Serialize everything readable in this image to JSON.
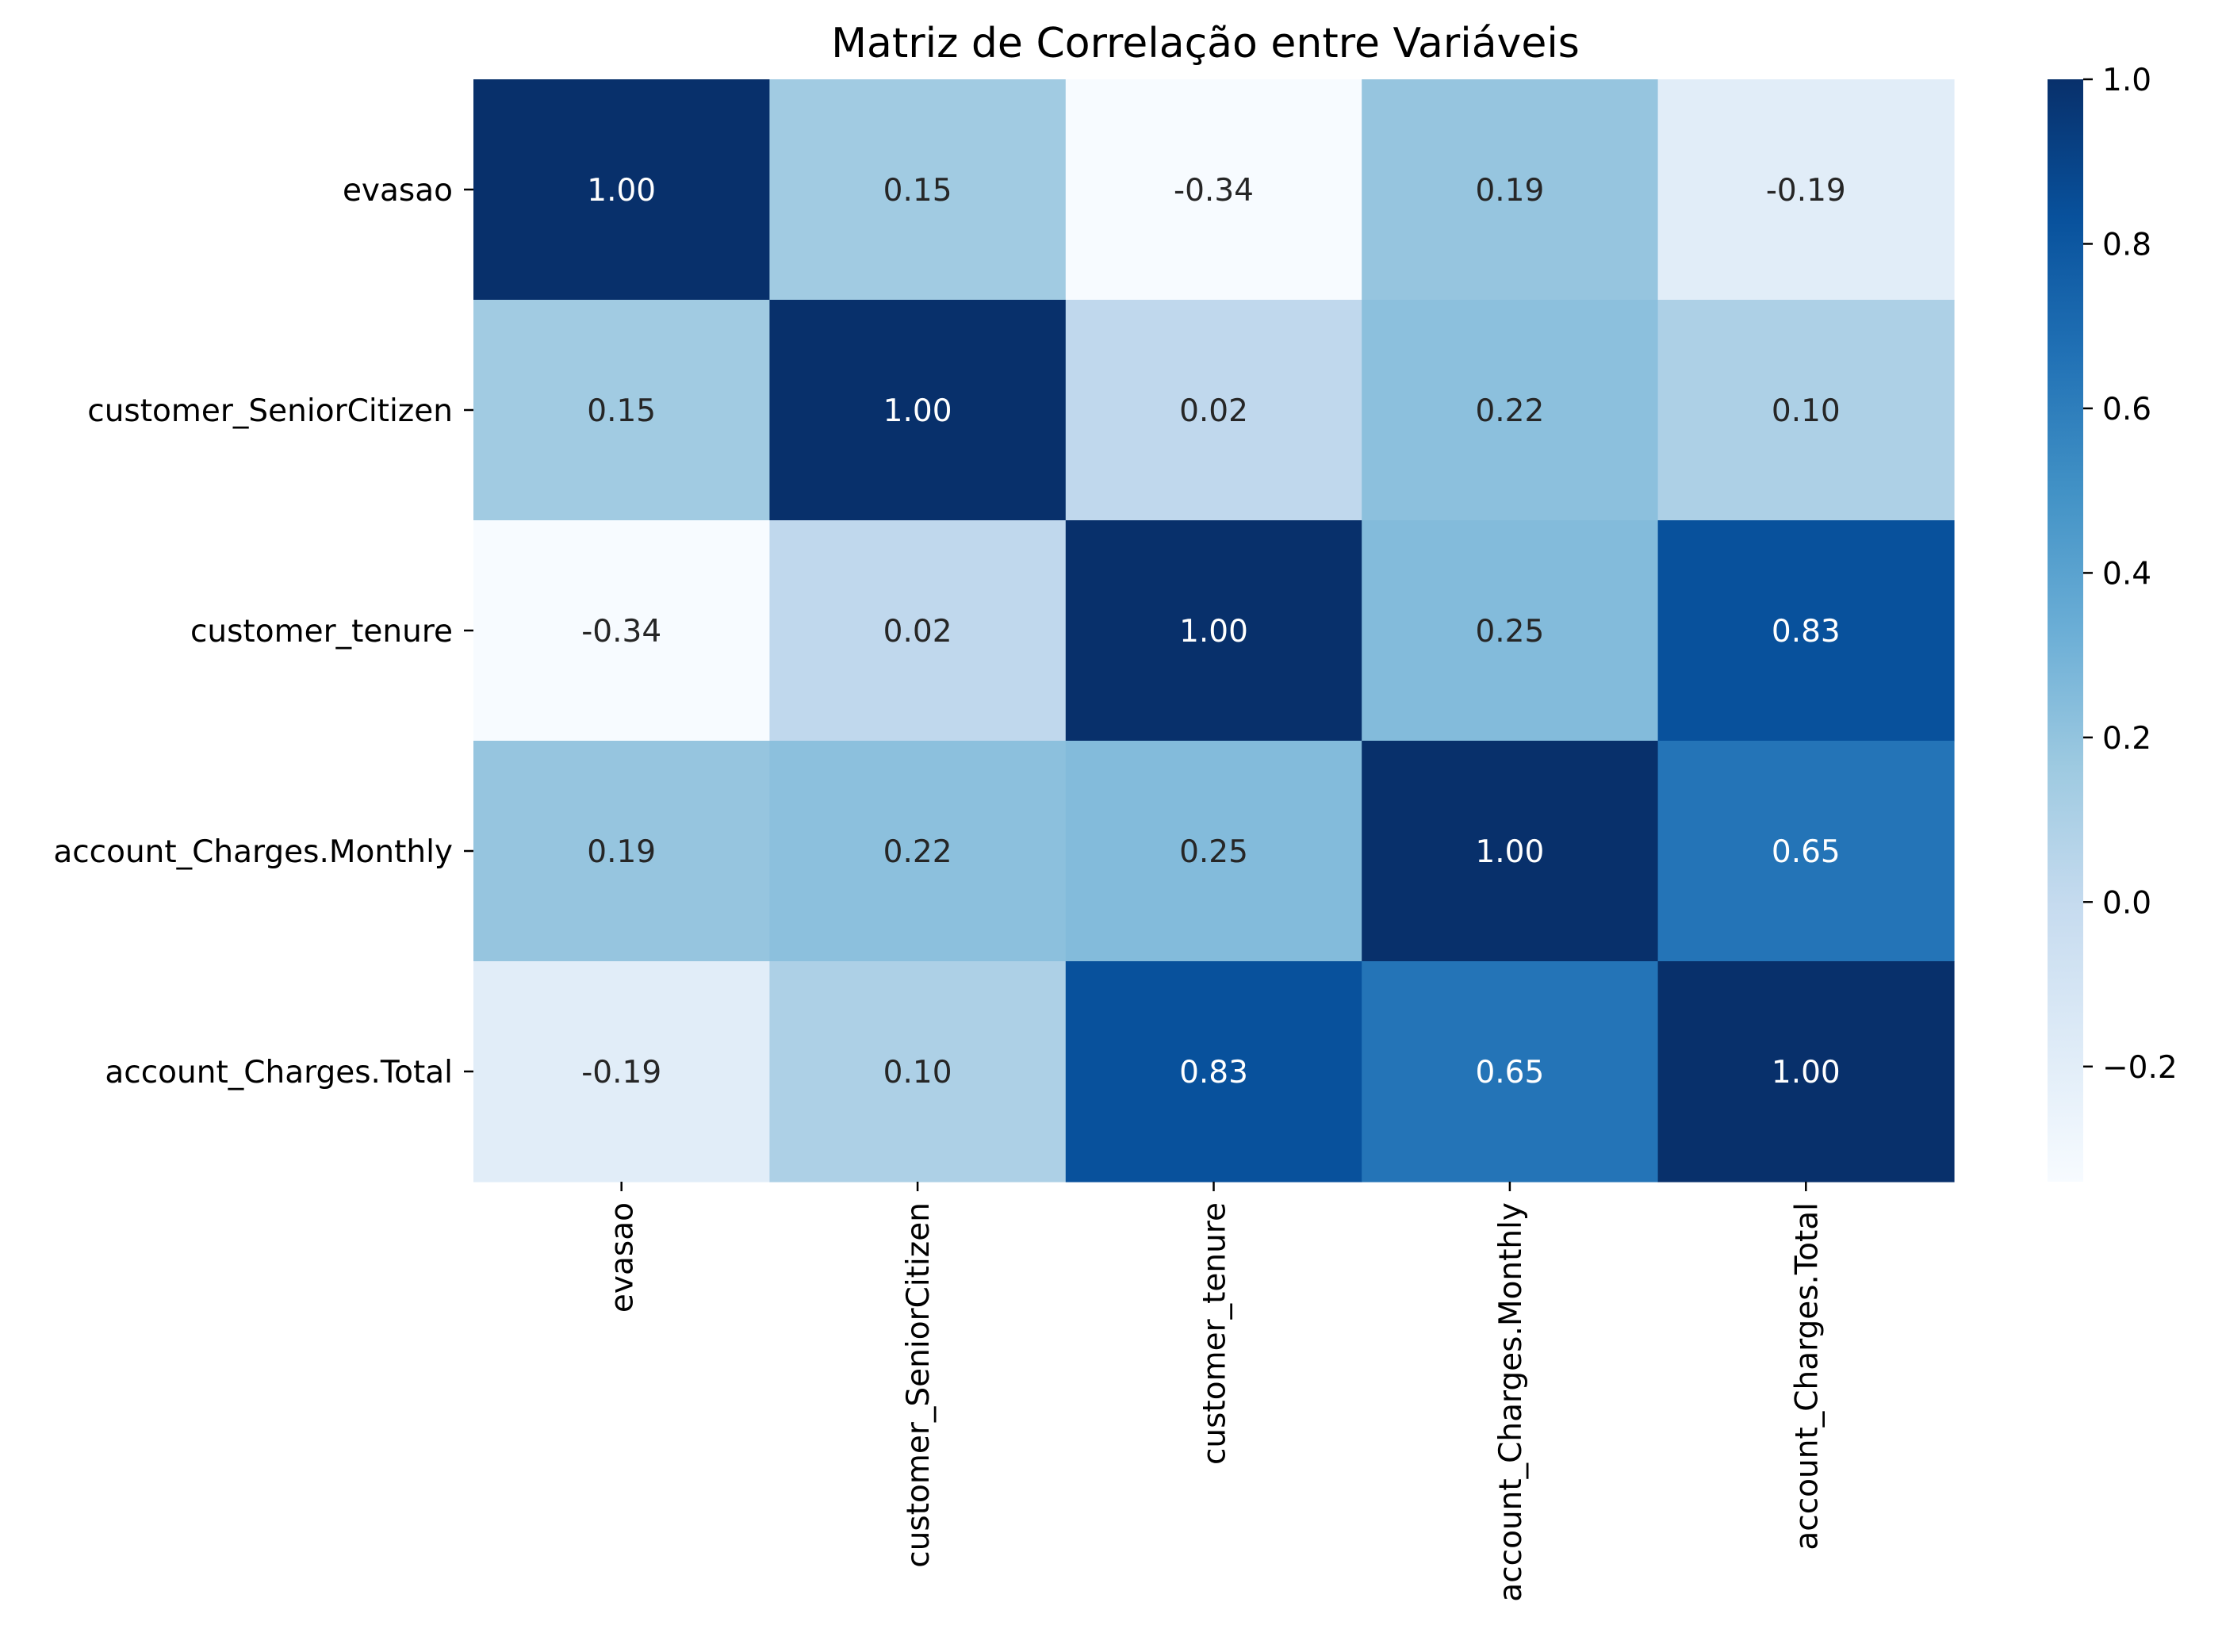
{
  "chart_data": {
    "type": "heatmap",
    "title": "Matriz de Correlação entre Variáveis",
    "rows": [
      "evasao",
      "customer_SeniorCitizen",
      "customer_tenure",
      "account_Charges.Monthly",
      "account_Charges.Total"
    ],
    "columns": [
      "evasao",
      "customer_SeniorCitizen",
      "customer_tenure",
      "account_Charges.Monthly",
      "account_Charges.Total"
    ],
    "values": [
      [
        1.0,
        0.15,
        -0.34,
        0.19,
        -0.19
      ],
      [
        0.15,
        1.0,
        0.02,
        0.22,
        0.1
      ],
      [
        -0.34,
        0.02,
        1.0,
        0.25,
        0.83
      ],
      [
        0.19,
        0.22,
        0.25,
        1.0,
        0.65
      ],
      [
        -0.19,
        0.1,
        0.83,
        0.65,
        1.0
      ]
    ],
    "cell_labels": [
      [
        "1.00",
        "0.15",
        "-0.34",
        "0.19",
        "-0.19"
      ],
      [
        "0.15",
        "1.00",
        "0.02",
        "0.22",
        "0.10"
      ],
      [
        "-0.34",
        "0.02",
        "1.00",
        "0.25",
        "0.83"
      ],
      [
        "0.19",
        "0.22",
        "0.25",
        "1.00",
        "0.65"
      ],
      [
        "-0.19",
        "0.10",
        "0.83",
        "0.65",
        "1.00"
      ]
    ],
    "colormap": "Blues",
    "vmin": -0.34,
    "vmax": 1.0,
    "colorbar_ticks": [
      1.0,
      0.8,
      0.6,
      0.4,
      0.2,
      0.0,
      -0.2
    ],
    "colorbar_tick_labels": [
      "1.0",
      "0.8",
      "0.6",
      "0.4",
      "0.2",
      "0.0",
      "−0.2"
    ],
    "colorbar_position": "right",
    "grid": false
  },
  "colors": {
    "blues_stops": [
      "#f7fbff",
      "#deebf7",
      "#c6dbef",
      "#9ecae1",
      "#6baed6",
      "#4292c6",
      "#2171b5",
      "#08519c",
      "#08306b"
    ],
    "text_dark": "#262626",
    "text_light": "#ffffff"
  }
}
